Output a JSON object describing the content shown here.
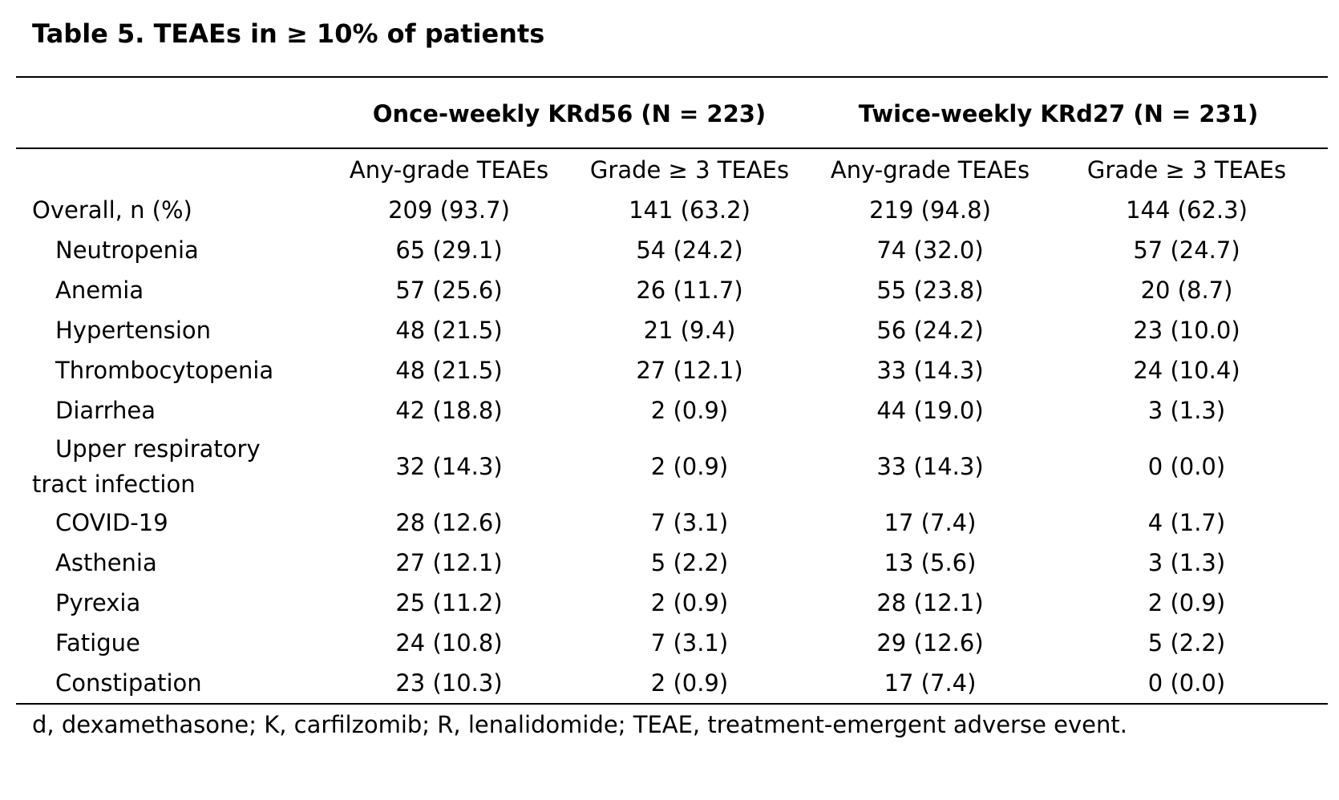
{
  "title": "Table 5. TEAEs in ≥ 10% of patients",
  "groups": [
    {
      "label": "Once-weekly KRd56 (N = 223)"
    },
    {
      "label": "Twice-weekly KRd27 (N = 231)"
    }
  ],
  "columns": [
    "Any-grade TEAEs",
    "Grade ≥ 3 TEAEs",
    "Any-grade TEAEs",
    "Grade ≥ 3 TEAEs"
  ],
  "rows": [
    {
      "label": "Overall, n (%)",
      "values": [
        "209 (93.7)",
        "141 (63.2)",
        "219 (94.8)",
        "144 (62.3)"
      ]
    },
    {
      "label": "Neutropenia",
      "values": [
        "65 (29.1)",
        "54 (24.2)",
        "74 (32.0)",
        "57 (24.7)"
      ]
    },
    {
      "label": "Anemia",
      "values": [
        "57 (25.6)",
        "26 (11.7)",
        "55 (23.8)",
        "20 (8.7)"
      ]
    },
    {
      "label": "Hypertension",
      "values": [
        "48 (21.5)",
        "21 (9.4)",
        "56 (24.2)",
        "23 (10.0)"
      ]
    },
    {
      "label": "Thrombocytopenia",
      "values": [
        "48 (21.5)",
        "27 (12.1)",
        "33 (14.3)",
        "24 (10.4)"
      ]
    },
    {
      "label": "Diarrhea",
      "values": [
        "42 (18.8)",
        "2 (0.9)",
        "44 (19.0)",
        "3 (1.3)"
      ]
    },
    {
      "label": "Upper respiratory tract infection",
      "values": [
        "32 (14.3)",
        "2 (0.9)",
        "33 (14.3)",
        "0 (0.0)"
      ]
    },
    {
      "label": "COVID-19",
      "values": [
        "28 (12.6)",
        "7 (3.1)",
        "17 (7.4)",
        "4 (1.7)"
      ]
    },
    {
      "label": "Asthenia",
      "values": [
        "27 (12.1)",
        "5 (2.2)",
        "13 (5.6)",
        "3 (1.3)"
      ]
    },
    {
      "label": "Pyrexia",
      "values": [
        "25 (11.2)",
        "2 (0.9)",
        "28 (12.1)",
        "2 (0.9)"
      ]
    },
    {
      "label": "Fatigue",
      "values": [
        "24 (10.8)",
        "7 (3.1)",
        "29 (12.6)",
        "5 (2.2)"
      ]
    },
    {
      "label": "Constipation",
      "values": [
        "23 (10.3)",
        "2 (0.9)",
        "17 (7.4)",
        "0 (0.0)"
      ]
    }
  ],
  "footnote": "d, dexamethasone; K, carfilzomib; R, lenalidomide; TEAE, treatment-emergent adverse event."
}
